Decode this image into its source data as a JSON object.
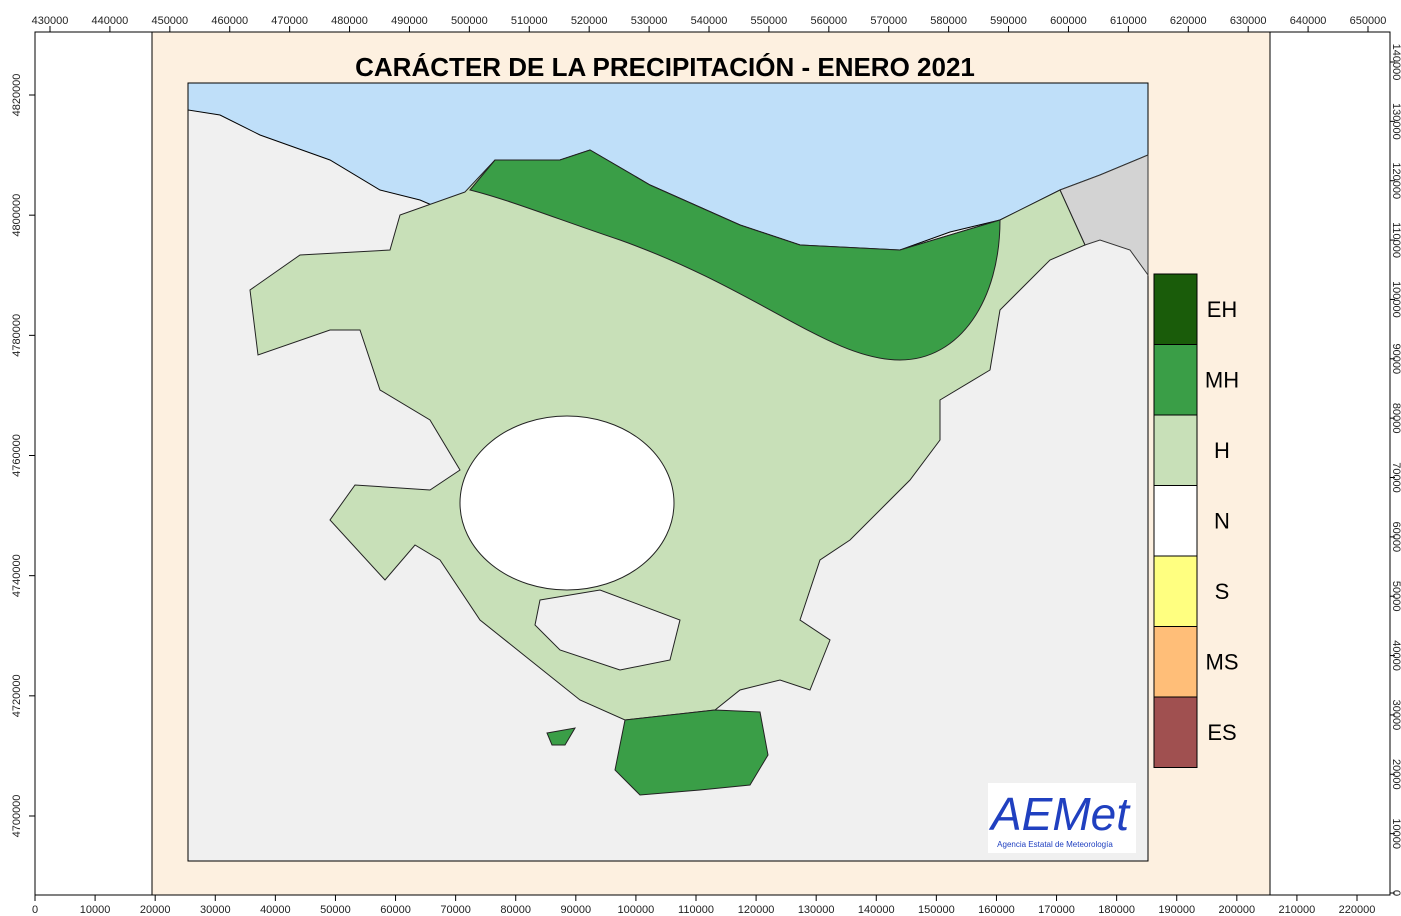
{
  "title": "CARÁCTER DE LA PRECIPITACIÓN - ENERO 2021",
  "axes": {
    "top": [
      430000,
      440000,
      450000,
      460000,
      470000,
      480000,
      490000,
      500000,
      510000,
      520000,
      530000,
      540000,
      550000,
      560000,
      570000,
      580000,
      590000,
      600000,
      610000,
      620000,
      630000,
      640000,
      650000
    ],
    "bottom": [
      0,
      10000,
      20000,
      30000,
      40000,
      50000,
      60000,
      70000,
      80000,
      90000,
      100000,
      110000,
      120000,
      130000,
      140000,
      150000,
      160000,
      170000,
      180000,
      190000,
      200000,
      210000,
      220000
    ],
    "left": [
      4700000,
      4720000,
      4740000,
      4760000,
      4780000,
      4800000,
      4820000
    ],
    "right": [
      0,
      10000,
      20000,
      30000,
      40000,
      50000,
      60000,
      70000,
      80000,
      90000,
      100000,
      110000,
      120000,
      130000,
      140000
    ]
  },
  "legend": [
    {
      "label": "EH",
      "color": "#1a5c0a"
    },
    {
      "label": "MH",
      "color": "#3a9e47"
    },
    {
      "label": "H",
      "color": "#c8e0b8"
    },
    {
      "label": "N",
      "color": "#ffffff"
    },
    {
      "label": "S",
      "color": "#ffff80"
    },
    {
      "label": "MS",
      "color": "#ffbe78"
    },
    {
      "label": "ES",
      "color": "#a05050"
    }
  ],
  "logo": {
    "name": "AEMet",
    "subtitle": "Agencia Estatal de Meteorología"
  }
}
